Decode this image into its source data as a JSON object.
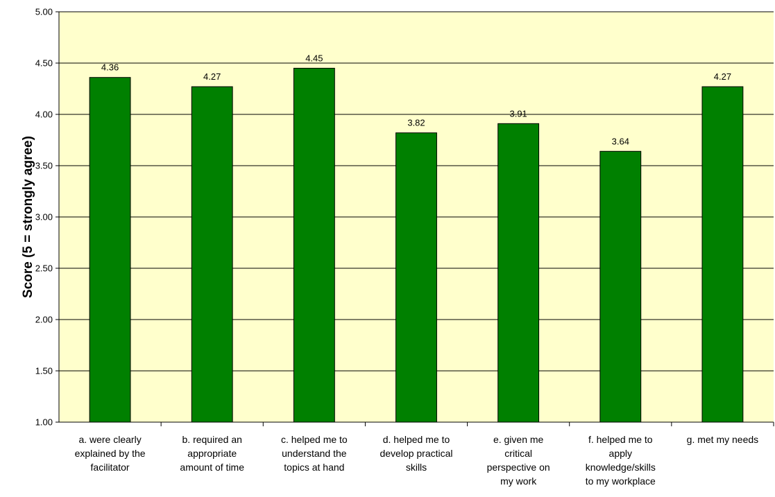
{
  "chart_data": {
    "type": "bar",
    "ylabel": "Score (5 = strongly agree)",
    "xlabel": "",
    "ylim": [
      1.0,
      5.0
    ],
    "ytick_step": 0.5,
    "ytick_labels": [
      "1.00",
      "1.50",
      "2.00",
      "2.50",
      "3.00",
      "3.50",
      "4.00",
      "4.50",
      "5.00"
    ],
    "grid": true,
    "categories": [
      [
        "a. were clearly",
        "explained by the",
        "facilitator"
      ],
      [
        "b. required an",
        "appropriate",
        "amount of time"
      ],
      [
        "c. helped me to",
        "understand the",
        "topics at hand"
      ],
      [
        "d. helped me to",
        "develop practical",
        "skills"
      ],
      [
        "e. given me",
        "critical",
        "perspective on",
        "my work"
      ],
      [
        "f. helped me to",
        "apply",
        "knowledge/skills",
        "to my workplace"
      ],
      [
        "g. met my needs"
      ]
    ],
    "values": [
      4.36,
      4.27,
      4.45,
      3.82,
      3.91,
      3.64,
      4.27
    ],
    "value_labels": [
      "4.36",
      "4.27",
      "4.45",
      "3.82",
      "3.91",
      "3.64",
      "4.27"
    ],
    "colors": {
      "bar": "#008000",
      "plot_background": "#ffffcc",
      "gridline": "#000000"
    }
  }
}
